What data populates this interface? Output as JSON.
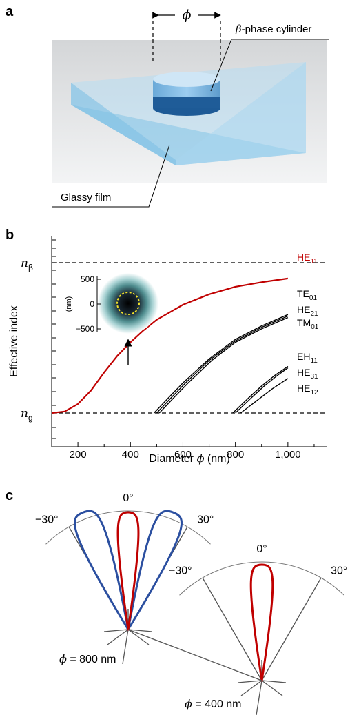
{
  "panels": {
    "a": "a",
    "b": "b",
    "c": "c"
  },
  "panel_a": {
    "diameter_symbol": "ϕ",
    "cylinder_label_symbol": "β",
    "cylinder_label_text": "-phase cylinder",
    "film_label": "Glassy film"
  },
  "chart_data": [
    {
      "type": "line",
      "xlabel_text": "Diameter ",
      "xlabel_symbol": "ϕ",
      "xlabel_unit": " (nm)",
      "ylabel": "Effective index",
      "xlim": [
        100,
        1150
      ],
      "ylim": [
        0,
        1
      ],
      "x_ticks": [
        200,
        400,
        600,
        800,
        1000
      ],
      "x_tick_labels": [
        "200",
        "400",
        "600",
        "800",
        "1,000"
      ],
      "y_reference_lines": [
        {
          "label_main": "n",
          "label_sub": "β",
          "value": 1.0
        },
        {
          "label_main": "n",
          "label_sub": "g",
          "value": 0.0
        }
      ],
      "series": [
        {
          "name": "HE",
          "sub": "11",
          "color": "#c00000",
          "x": [
            100,
            150,
            200,
            250,
            300,
            350,
            400,
            450,
            500,
            600,
            700,
            800,
            900,
            1000
          ],
          "y": [
            0.0,
            0.01,
            0.06,
            0.15,
            0.27,
            0.38,
            0.47,
            0.55,
            0.62,
            0.72,
            0.79,
            0.84,
            0.87,
            0.895
          ]
        },
        {
          "name": "TE",
          "sub": "01",
          "color": "#000000",
          "x": [
            490,
            550,
            600,
            700,
            800,
            900,
            1000
          ],
          "y": [
            0.0,
            0.11,
            0.2,
            0.36,
            0.49,
            0.58,
            0.655
          ]
        },
        {
          "name": "HE",
          "sub": "21",
          "color": "#000000",
          "x": [
            500,
            560,
            610,
            700,
            800,
            900,
            1000
          ],
          "y": [
            0.0,
            0.11,
            0.2,
            0.35,
            0.48,
            0.57,
            0.645
          ]
        },
        {
          "name": "TM",
          "sub": "01",
          "color": "#000000",
          "x": [
            510,
            570,
            620,
            710,
            800,
            900,
            1000
          ],
          "y": [
            0.0,
            0.11,
            0.2,
            0.35,
            0.47,
            0.56,
            0.635
          ]
        },
        {
          "name": "EH",
          "sub": "11",
          "color": "#000000",
          "x": [
            790,
            850,
            900,
            950,
            1000
          ],
          "y": [
            0.0,
            0.1,
            0.18,
            0.25,
            0.31
          ]
        },
        {
          "name": "HE",
          "sub": "31",
          "color": "#000000",
          "x": [
            800,
            860,
            910,
            960,
            1000
          ],
          "y": [
            0.0,
            0.1,
            0.18,
            0.25,
            0.3
          ]
        },
        {
          "name": "HE",
          "sub": "12",
          "color": "#000000",
          "x": [
            820,
            880,
            940,
            1000
          ],
          "y": [
            0.0,
            0.08,
            0.16,
            0.23
          ]
        }
      ],
      "inset": {
        "ylabel": "(nm)",
        "y_ticks": [
          500,
          0,
          -500
        ],
        "y_tick_labels": [
          "500",
          "0",
          "−500"
        ],
        "arrow_at_x": 400
      }
    },
    {
      "type": "polar",
      "angle_labels": [
        "−30°",
        "0°",
        "30°"
      ],
      "plots": [
        {
          "caption_symbol": "ϕ",
          "caption_text": " = 800 nm",
          "series": [
            {
              "color": "#c00000"
            },
            {
              "color": "#2b4fa0"
            }
          ]
        },
        {
          "caption_symbol": "ϕ",
          "caption_text": " = 400 nm",
          "series": [
            {
              "color": "#c00000"
            }
          ]
        }
      ]
    }
  ],
  "colors": {
    "red": "#c00000",
    "blue": "#2b4fa0",
    "film": "#a9d6ee",
    "cylinder": "#6aaede"
  }
}
